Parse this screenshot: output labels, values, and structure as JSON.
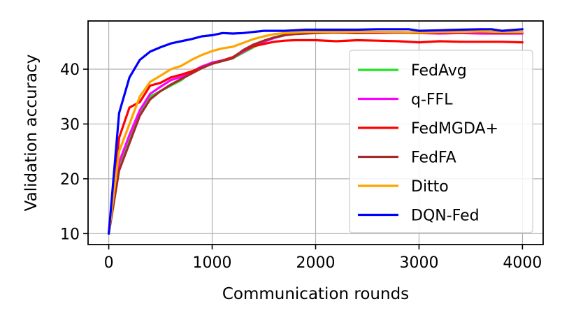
{
  "chart_data": {
    "type": "line",
    "title": "",
    "xlabel": "Communication rounds",
    "ylabel": "Validation accuracy",
    "xlim": [
      -200,
      4200
    ],
    "ylim": [
      8,
      48.8
    ],
    "xticks": [
      0,
      1000,
      2000,
      3000,
      4000
    ],
    "yticks": [
      10,
      20,
      30,
      40
    ],
    "grid": true,
    "legend_position": "bottom-right",
    "series": [
      {
        "name": "FedAvg",
        "color": "#22e022",
        "x": [
          0,
          100,
          200,
          300,
          400,
          500,
          600,
          700,
          800,
          900,
          1000,
          1100,
          1200,
          1300,
          1400,
          1500,
          1600,
          1700,
          1800,
          1900,
          2000,
          2200,
          2400,
          2600,
          2800,
          3000,
          3200,
          3400,
          3600,
          3800,
          4000
        ],
        "y": [
          10,
          22,
          27.5,
          32,
          35,
          36,
          37,
          38,
          39.5,
          40.5,
          41,
          41.5,
          42,
          43,
          44,
          45,
          45.8,
          46.3,
          46.6,
          46.7,
          46.8,
          46.8,
          46.7,
          46.8,
          46.7,
          46.6,
          46.7,
          46.6,
          46.7,
          46.6,
          46.6
        ]
      },
      {
        "name": "q-FFL",
        "color": "#ff00ff",
        "x": [
          0,
          100,
          200,
          300,
          400,
          500,
          600,
          700,
          800,
          900,
          1000,
          1100,
          1200,
          1300,
          1400,
          1500,
          1600,
          1700,
          1800,
          1900,
          2000,
          2200,
          2400,
          2600,
          2800,
          3000,
          3200,
          3400,
          3600,
          3800,
          4000
        ],
        "y": [
          10,
          23,
          28,
          32.5,
          35.5,
          36.8,
          38,
          38.6,
          39.5,
          40.5,
          41.2,
          41.6,
          42.1,
          43.2,
          44.2,
          45,
          45.7,
          46.2,
          46.5,
          46.6,
          46.7,
          46.7,
          46.6,
          46.6,
          46.7,
          46.6,
          46.5,
          46.6,
          46.5,
          46.5,
          46.5
        ]
      },
      {
        "name": "FedMGDA+",
        "color": "#ff0000",
        "x": [
          0,
          100,
          200,
          300,
          400,
          500,
          600,
          700,
          800,
          900,
          1000,
          1100,
          1200,
          1300,
          1400,
          1500,
          1600,
          1700,
          1800,
          1900,
          2000,
          2200,
          2400,
          2600,
          2800,
          3000,
          3200,
          3400,
          3600,
          3800,
          4000
        ],
        "y": [
          10,
          27.5,
          33,
          34,
          37,
          37.5,
          38.5,
          39,
          39.6,
          40.3,
          41,
          41.6,
          42.2,
          43.4,
          44.2,
          44.6,
          45,
          45.2,
          45.3,
          45.3,
          45.3,
          45.1,
          45.3,
          45.2,
          45.1,
          44.9,
          45.1,
          45.0,
          45.0,
          45.0,
          44.9
        ]
      },
      {
        "name": "FedFA",
        "color": "#a52a2a",
        "x": [
          0,
          100,
          200,
          300,
          400,
          500,
          600,
          700,
          800,
          900,
          1000,
          1100,
          1200,
          1300,
          1400,
          1500,
          1600,
          1700,
          1800,
          1900,
          2000,
          2200,
          2400,
          2600,
          2800,
          3000,
          3200,
          3400,
          3600,
          3800,
          4000
        ],
        "y": [
          10,
          21.5,
          26.5,
          31.5,
          34.5,
          36,
          37.2,
          38.2,
          39.2,
          40.2,
          41,
          41.5,
          42,
          43.5,
          44.5,
          45.2,
          45.8,
          46.2,
          46.4,
          46.5,
          46.6,
          46.7,
          46.6,
          46.7,
          46.7,
          46.6,
          46.7,
          46.7,
          46.8,
          46.6,
          46.7
        ]
      },
      {
        "name": "Ditto",
        "color": "#ffa500",
        "x": [
          0,
          100,
          200,
          300,
          400,
          500,
          600,
          700,
          800,
          900,
          1000,
          1100,
          1200,
          1300,
          1400,
          1500,
          1600,
          1700,
          1800,
          1900,
          2000,
          2200,
          2400,
          2600,
          2800,
          3000,
          3200,
          3400,
          3600,
          3800,
          4000
        ],
        "y": [
          10,
          25,
          30,
          35,
          37.7,
          38.8,
          40,
          40.6,
          41.7,
          42.6,
          43.3,
          43.8,
          44.1,
          44.8,
          45.5,
          46,
          46.4,
          46.6,
          46.7,
          46.8,
          46.8,
          46.8,
          46.8,
          46.8,
          46.8,
          46.7,
          46.8,
          46.8,
          46.9,
          46.8,
          46.8
        ]
      },
      {
        "name": "DQN-Fed",
        "color": "#0000ff",
        "x": [
          0,
          100,
          200,
          300,
          400,
          500,
          600,
          700,
          800,
          900,
          1000,
          1100,
          1200,
          1300,
          1400,
          1500,
          1600,
          1700,
          1800,
          1900,
          2000,
          2200,
          2400,
          2600,
          2800,
          2900,
          3000,
          3200,
          3400,
          3600,
          3700,
          3800,
          4000
        ],
        "y": [
          10,
          32,
          38.5,
          41.7,
          43.2,
          44,
          44.7,
          45.1,
          45.5,
          46,
          46.2,
          46.6,
          46.5,
          46.6,
          46.8,
          47,
          47,
          47,
          47.1,
          47.2,
          47.2,
          47.2,
          47.2,
          47.3,
          47.3,
          47.3,
          47,
          47.1,
          47.2,
          47.3,
          47.3,
          47,
          47.3
        ]
      }
    ]
  }
}
